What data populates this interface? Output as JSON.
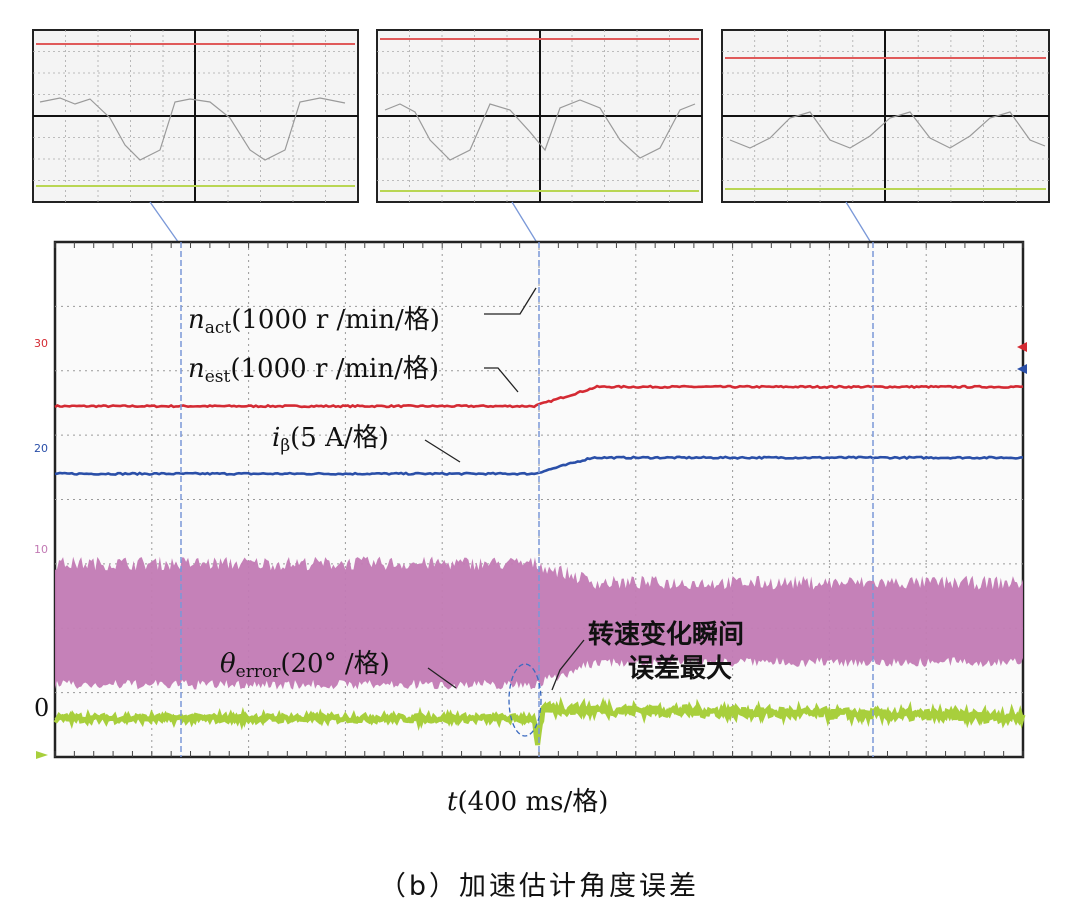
{
  "chart_data": {
    "type": "line",
    "caption": "（b）加速估计角度误差",
    "x_axis_label": "(400 ms/格)",
    "x_axis_var": "t",
    "zero_label": "0",
    "channel_markers": [
      "30",
      "20",
      "10"
    ],
    "grid": {
      "divisions_x": 10,
      "divisions_y": 8,
      "show": true
    },
    "series": [
      {
        "name_base": "n",
        "name_sub": "act",
        "unit": "(1000 r /min/格)",
        "color": "#d42a33",
        "points": [
          [
            0,
            5.45
          ],
          [
            4.95,
            5.45
          ],
          [
            5.6,
            5.75
          ],
          [
            10,
            5.75
          ]
        ]
      },
      {
        "name_base": "n",
        "name_sub": "est",
        "unit": "(1000 r /min/格)",
        "color": "#2a4fa8",
        "points": [
          [
            0,
            4.4
          ],
          [
            4.95,
            4.4
          ],
          [
            5.55,
            4.65
          ],
          [
            10,
            4.65
          ]
        ]
      },
      {
        "name_base": "i",
        "name_sub": "β",
        "unit": "(5 A/格)",
        "color": "#c27ab4",
        "envelope_upper": [
          [
            0,
            2.9
          ],
          [
            4.95,
            2.9
          ],
          [
            5.6,
            2.6
          ],
          [
            10,
            2.6
          ]
        ],
        "envelope_lower": [
          [
            0,
            1.2
          ],
          [
            4.95,
            1.2
          ],
          [
            5.6,
            1.55
          ],
          [
            10,
            1.55
          ]
        ]
      },
      {
        "name_base": "θ",
        "name_sub": "error",
        "unit": "(20° /格)",
        "color": "#a8cf3c",
        "points": [
          [
            0,
            0.6
          ],
          [
            4.95,
            0.6
          ],
          [
            4.98,
            0.15
          ],
          [
            5.05,
            0.75
          ],
          [
            10,
            0.62
          ]
        ]
      }
    ],
    "annotation": {
      "lines": [
        "转速变化瞬间",
        "误差最大"
      ]
    }
  }
}
